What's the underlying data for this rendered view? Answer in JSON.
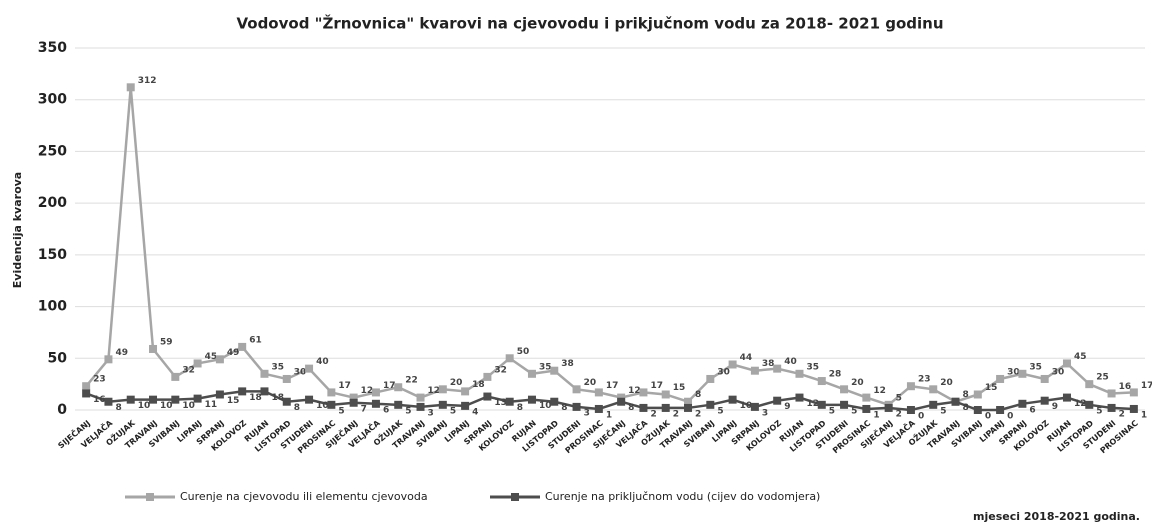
{
  "chart_data": {
    "type": "line",
    "title": "Vodovod \"Žrnovnica\" kvarovi na cjevovodu i prikjučnom vodu za 2018- 2021 godinu",
    "y_label": "Evidencija kvarova",
    "x_label": "mjeseci 2018-2021 godina.",
    "categories": [
      "SIJEČANJ",
      "VELJAČA",
      "OŽUJAK",
      "TRAVANJ",
      "SVIBANJ",
      "LIPANJ",
      "SRPANJ",
      "KOLOVOZ",
      "RUJAN",
      "LISTOPAD",
      "STUDENI",
      "PROSINAC",
      "SIJEČANJ",
      "VELJAČA",
      "OŽUJAK",
      "TRAVANJ",
      "SVIBANJ",
      "LIPANJ",
      "SRPANJ",
      "KOLOVOZ",
      "RUJAN",
      "LISTOPAD",
      "STUDENI",
      "PROSINAC",
      "SIJEČANJ",
      "VELJAČA",
      "OŽUJAK",
      "TRAVANJ",
      "SVIBANJ",
      "LIPANJ",
      "SRPANJ",
      "KOLOVOZ",
      "RUJAN",
      "LISTOPAD",
      "STUDENI",
      "PROSINAC",
      "SIJEČANJ",
      "VELJAČA",
      "OŽUJAK",
      "TRAVANJ",
      "SVIBANJ",
      "LIPANJ",
      "SRPANJ",
      "KOLOVOZ",
      "RUJAN",
      "LISTOPAD",
      "STUDENI",
      "PROSINAC"
    ],
    "series": [
      {
        "name": "Curenje na cjevovodu ili elementu cjevovoda",
        "color": "#a6a6a6",
        "values": [
          23,
          49,
          312,
          59,
          32,
          45,
          49,
          61,
          35,
          30,
          40,
          17,
          12,
          17,
          22,
          12,
          20,
          18,
          32,
          50,
          35,
          38,
          20,
          17,
          12,
          17,
          15,
          8,
          30,
          44,
          38,
          40,
          35,
          28,
          20,
          12,
          5,
          23,
          20,
          8,
          15,
          30,
          35,
          30,
          45,
          25,
          16,
          17
        ]
      },
      {
        "name": "Curenje na priključnom vodu (cijev do vodomjera)",
        "color": "#4d4d4d",
        "values": [
          16,
          8,
          10,
          10,
          10,
          11,
          15,
          18,
          18,
          8,
          10,
          5,
          7,
          6,
          5,
          3,
          5,
          4,
          13,
          8,
          10,
          8,
          3,
          1,
          8,
          2,
          2,
          2,
          5,
          10,
          3,
          9,
          12,
          5,
          5,
          1,
          2,
          0,
          5,
          8,
          0,
          0,
          6,
          9,
          12,
          5,
          2,
          1
        ]
      }
    ],
    "ylim": [
      0,
      350
    ],
    "yticks": [
      0,
      50,
      100,
      150,
      200,
      250,
      300,
      350
    ],
    "grid": true,
    "legend": "bottom"
  }
}
